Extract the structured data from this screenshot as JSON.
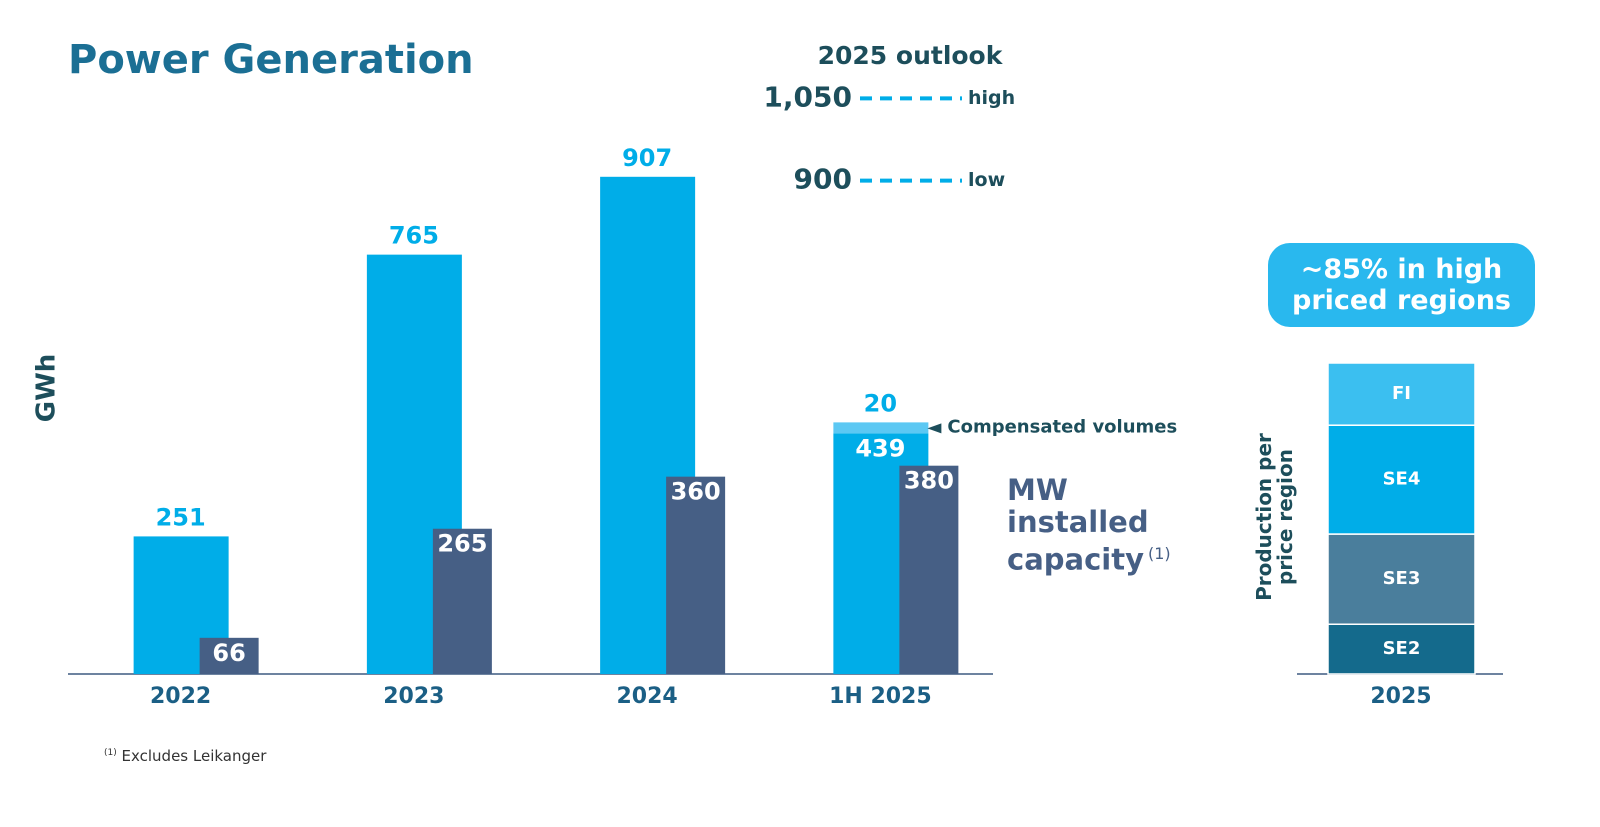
{
  "footnote": {
    "marker": "(1)",
    "text": "Excludes Leikanger"
  },
  "chart_data": [
    {
      "type": "bar",
      "title": "Power Generation",
      "y_label": "GWh",
      "categories": [
        "2022",
        "2023",
        "2024",
        "1H 2025"
      ],
      "series": [
        {
          "color": "#00ade8",
          "values": [
            251,
            765,
            907,
            439
          ]
        },
        {
          "name": "MW installed capacity",
          "color": "#465f85",
          "values": [
            66,
            265,
            360,
            380
          ]
        },
        {
          "name": "Compensated volumes",
          "color": "#5cc8f3",
          "values": [
            null,
            null,
            null,
            20
          ],
          "stacked_on": 0
        }
      ],
      "ylim": [
        0,
        1100
      ],
      "outlook": {
        "title": "2025 outlook",
        "color": "#00ade8",
        "lines": [
          {
            "value": 1050,
            "label": "1,050",
            "name": "high"
          },
          {
            "value": 900,
            "label": "900",
            "name": "low"
          }
        ]
      }
    },
    {
      "type": "stacked_bar",
      "title": "~85% in high priced regions",
      "y_label": "Production per price region",
      "categories": [
        "2025"
      ],
      "series": [
        {
          "name": "SE2",
          "color": "#146a8c",
          "values": [
            16
          ]
        },
        {
          "name": "SE3",
          "color": "#4a7e9c",
          "values": [
            29
          ]
        },
        {
          "name": "SE4",
          "color": "#00ade8",
          "values": [
            35
          ]
        },
        {
          "name": "FI",
          "color": "#3bbff0",
          "values": [
            20
          ]
        }
      ],
      "ylim": [
        0,
        100
      ]
    }
  ]
}
